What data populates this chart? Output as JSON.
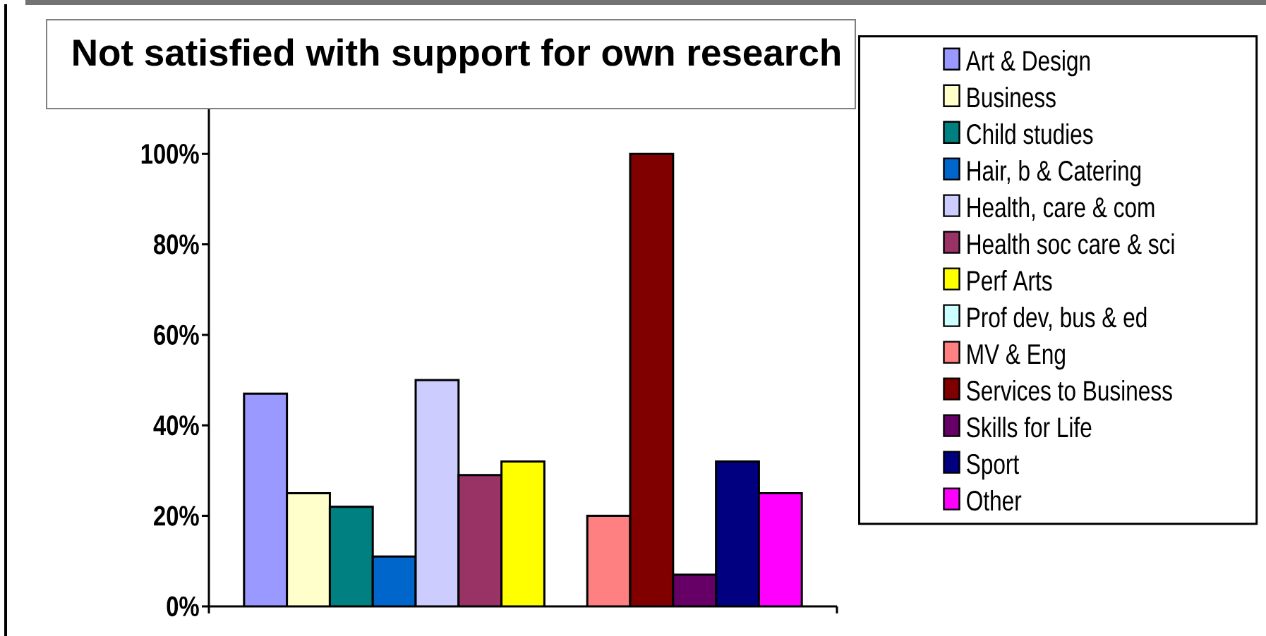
{
  "chart_data": {
    "type": "bar",
    "title": "Not satisfied with support for own research",
    "categories": [
      null
    ],
    "series": [
      {
        "name": "Art & Design",
        "color": "#9999ff",
        "values": [
          47
        ]
      },
      {
        "name": "Business",
        "color": "#ffffcc",
        "values": [
          25
        ]
      },
      {
        "name": "Child studies",
        "color": "#008080",
        "values": [
          22
        ]
      },
      {
        "name": "Hair, b & Catering",
        "color": "#0066cc",
        "values": [
          11
        ]
      },
      {
        "name": "Health, care & com",
        "color": "#ccccff",
        "values": [
          50
        ]
      },
      {
        "name": "Health soc care & sci",
        "color": "#993366",
        "values": [
          29
        ]
      },
      {
        "name": "Perf Arts",
        "color": "#ffff00",
        "values": [
          32
        ]
      },
      {
        "name": "Prof dev, bus & ed",
        "color": "#ccffff",
        "values": [
          null
        ]
      },
      {
        "name": "MV & Eng",
        "color": "#ff8080",
        "values": [
          20
        ]
      },
      {
        "name": "Services to Business",
        "color": "#800000",
        "values": [
          100
        ]
      },
      {
        "name": "Skills for Life",
        "color": "#660066",
        "values": [
          7
        ]
      },
      {
        "name": "Sport",
        "color": "#000080",
        "values": [
          32
        ]
      },
      {
        "name": "Other",
        "color": "#ff00ff",
        "values": [
          25
        ]
      }
    ],
    "ylim": [
      0,
      110
    ],
    "yticks": [
      {
        "value": 0,
        "label": "0%"
      },
      {
        "value": 20,
        "label": "20%"
      },
      {
        "value": 40,
        "label": "40%"
      },
      {
        "value": 60,
        "label": "60%"
      },
      {
        "value": 80,
        "label": "80%"
      },
      {
        "value": 100,
        "label": "100%"
      }
    ],
    "legend": "right",
    "tick_labels": "y"
  }
}
